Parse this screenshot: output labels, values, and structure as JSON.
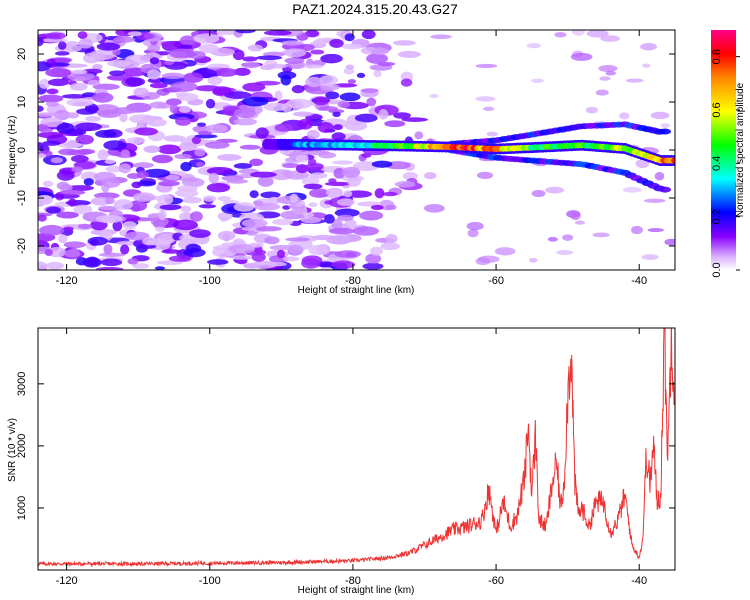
{
  "title": "PAZ1.2024.315.20.43.G27",
  "chart_data": [
    {
      "type": "heatmap",
      "xlabel": "Height of straight line (km)",
      "ylabel": "Frequency (Hz)",
      "xlim": [
        -124,
        -35
      ],
      "ylim": [
        -25,
        25
      ],
      "xticks": [
        -120,
        -100,
        -80,
        -60,
        -40
      ],
      "yticks": [
        -20,
        -10,
        0,
        10,
        20
      ],
      "colorbar": {
        "label": "Normalized spectral amplitude",
        "range": [
          0.0,
          0.9
        ],
        "ticks": [
          0.0,
          0.2,
          0.4,
          0.6,
          0.8
        ],
        "colormap": [
          "#ffffff",
          "#8800ff",
          "#0000ff",
          "#00ffff",
          "#00ff00",
          "#ffff00",
          "#ff8800",
          "#ff0000",
          "#ff0088"
        ]
      },
      "main_signal_track": [
        {
          "x": -90,
          "f": 1.2,
          "amp": 0.3
        },
        {
          "x": -80,
          "f": 1.0,
          "amp": 0.35
        },
        {
          "x": -72,
          "f": 0.8,
          "amp": 0.55
        },
        {
          "x": -66,
          "f": 0.6,
          "amp": 0.85
        },
        {
          "x": -60,
          "f": 0.2,
          "amp": 0.8
        },
        {
          "x": -55,
          "f": 0.5,
          "amp": 0.5
        },
        {
          "x": -48,
          "f": 1.0,
          "amp": 0.5
        },
        {
          "x": -42,
          "f": 0.3,
          "amp": 0.6
        },
        {
          "x": -37,
          "f": -2.2,
          "amp": 0.8
        }
      ]
    },
    {
      "type": "line",
      "xlabel": "Height of straight line (km)",
      "ylabel": "SNR (10 * v/v)",
      "xlim": [
        -124,
        -35
      ],
      "ylim": [
        0,
        3900
      ],
      "xticks": [
        -120,
        -100,
        -80,
        -60,
        -40
      ],
      "yticks": [
        1000,
        2000,
        3000
      ],
      "color": "#ee3333",
      "series": [
        {
          "x": [
            -124,
            -110,
            -100,
            -90,
            -80,
            -75,
            -72,
            -70,
            -68,
            -66,
            -64,
            -62,
            -61,
            -60,
            -59,
            -58,
            -57,
            -56,
            -55.5,
            -55,
            -54.5,
            -54,
            -53,
            -52,
            -51.5,
            -51,
            -50.5,
            -50,
            -49.5,
            -49,
            -48.5,
            -48,
            -47,
            -46,
            -45,
            -44,
            -43,
            -42,
            -41,
            -40,
            -39.5,
            -39,
            -38.5,
            -38,
            -37.5,
            -37,
            -36.5,
            -36,
            -35.5,
            -35
          ],
          "values": [
            100,
            100,
            110,
            120,
            150,
            200,
            280,
            400,
            520,
            650,
            700,
            800,
            1300,
            600,
            1100,
            700,
            900,
            1500,
            2350,
            1200,
            2200,
            800,
            700,
            1500,
            1700,
            1000,
            1400,
            2800,
            3600,
            1400,
            900,
            1000,
            700,
            1100,
            1100,
            600,
            800,
            1200,
            400,
            200,
            500,
            1900,
            1400,
            2000,
            1100,
            1200,
            3850,
            1800,
            3900,
            2800
          ]
        }
      ]
    }
  ]
}
